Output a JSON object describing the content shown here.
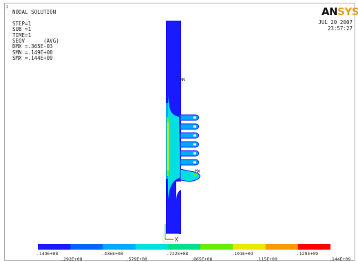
{
  "window_number": "1",
  "plot_info": {
    "lines": [
      "NODAL SOLUTION",
      "",
      "STEP=1",
      "SUB =1",
      "TIME=1",
      "SEQV      (AVG)",
      "DMX =.365E-03",
      "SMN =.149E+08",
      "SMX =.144E+09"
    ]
  },
  "brand": {
    "logo_a": "AN",
    "logo_b": "SYS"
  },
  "timestamp": {
    "date": "JUL 20 2007",
    "time": "23:57:27"
  },
  "markers": {
    "min": "MN",
    "max": "MX",
    "axis_x": "X"
  },
  "legend": {
    "colors": [
      "#1a1aff",
      "#0066ff",
      "#00aaff",
      "#00e0e0",
      "#00e08a",
      "#66ee00",
      "#e8e800",
      "#ff9900",
      "#ff0000"
    ],
    "upper_labels": [
      ".149E+08",
      ".436E+08",
      ".722E+08",
      ".101E+09",
      ".129E+09"
    ],
    "lower_labels": [
      ".292E+08",
      ".579E+08",
      ".865E+08",
      ".115E+09",
      ".144E+09"
    ]
  }
}
